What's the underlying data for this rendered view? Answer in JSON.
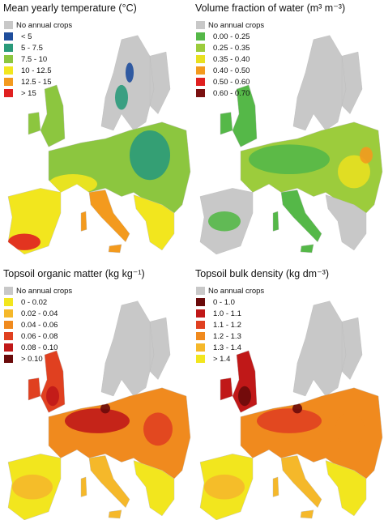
{
  "panels": [
    {
      "title": "Mean yearly temperature (°C)",
      "legend": [
        {
          "label": "No annual crops",
          "color": "#c8c8c8"
        },
        {
          "label": "< 5",
          "color": "#1f4e9c"
        },
        {
          "label": "5 - 7.5",
          "color": "#2a9a7a"
        },
        {
          "label": "7.5 - 10",
          "color": "#8cc63f"
        },
        {
          "label": "10 - 12.5",
          "color": "#f2e61e"
        },
        {
          "label": "12.5 - 15",
          "color": "#f39a1e"
        },
        {
          "label": "> 15",
          "color": "#e02020"
        }
      ]
    },
    {
      "title": "Volume fraction of water (m³ m⁻³)",
      "legend": [
        {
          "label": "No annual crops",
          "color": "#c8c8c8"
        },
        {
          "label": "0.00 - 0.25",
          "color": "#55b848"
        },
        {
          "label": "0.25 - 0.35",
          "color": "#9ccc3c"
        },
        {
          "label": "0.35 - 0.40",
          "color": "#e8e020"
        },
        {
          "label": "0.40 - 0.50",
          "color": "#f39a1e"
        },
        {
          "label": "0.50 - 0.60",
          "color": "#e02020"
        },
        {
          "label": "0.60 - 0.70",
          "color": "#7a1010"
        }
      ]
    },
    {
      "title": "Topsoil organic matter (kg kg⁻¹)",
      "legend": [
        {
          "label": "No annual crops",
          "color": "#c8c8c8"
        },
        {
          "label": "0 - 0.02",
          "color": "#f2e61e"
        },
        {
          "label": "0.02 - 0.04",
          "color": "#f5b82a"
        },
        {
          "label": "0.04 - 0.06",
          "color": "#f08a1e"
        },
        {
          "label": "0.06 - 0.08",
          "color": "#e04020"
        },
        {
          "label": "0.08 - 0.10",
          "color": "#c01818"
        },
        {
          "label": "> 0.10",
          "color": "#6a0a0a"
        }
      ]
    },
    {
      "title": "Topsoil bulk density (kg dm⁻³)",
      "legend": [
        {
          "label": "No annual crops",
          "color": "#c8c8c8"
        },
        {
          "label": "0 - 1.0",
          "color": "#6a0a0a"
        },
        {
          "label": "1.0 - 1.1",
          "color": "#c01818"
        },
        {
          "label": "1.1 - 1.2",
          "color": "#e04020"
        },
        {
          "label": "1.2 - 1.3",
          "color": "#f08a1e"
        },
        {
          "label": "1.3 - 1.4",
          "color": "#f5b82a"
        },
        {
          "label": "> 1.4",
          "color": "#f2e61e"
        }
      ]
    }
  ]
}
